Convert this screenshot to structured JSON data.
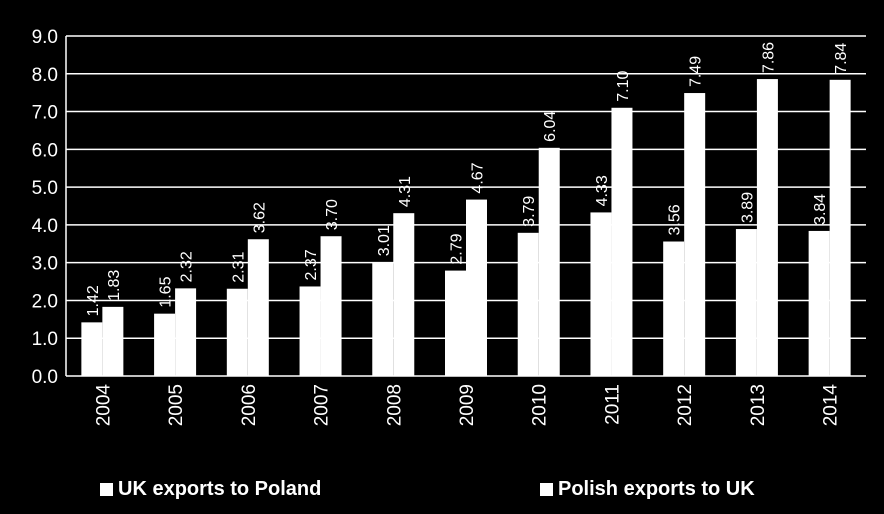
{
  "chart_data": {
    "type": "bar",
    "title": "",
    "xlabel": "",
    "ylabel": "",
    "categories": [
      "2004",
      "2005",
      "2006",
      "2007",
      "2008",
      "2009",
      "2010",
      "2011",
      "2012",
      "2013",
      "2014"
    ],
    "series": [
      {
        "name": "UK exports to Poland",
        "values": [
          1.42,
          1.65,
          2.31,
          2.37,
          3.01,
          2.79,
          3.79,
          4.33,
          3.56,
          3.89,
          3.84
        ],
        "labels": [
          "1.42",
          "1.65",
          "2.31",
          "2.37",
          "3.01",
          "2.79",
          "3.79",
          "4.33",
          "3.56",
          "3.89",
          "3.84"
        ]
      },
      {
        "name": "Polish exports to UK",
        "values": [
          1.83,
          2.32,
          3.62,
          3.7,
          4.31,
          4.67,
          6.04,
          7.1,
          7.49,
          7.86,
          7.84
        ],
        "labels": [
          "1.83",
          "2.32",
          "3.62",
          "3.70",
          "4.31",
          "4.67",
          "6.04",
          "7.10",
          "7.49",
          "7.86",
          "7.84"
        ]
      }
    ],
    "ylim": [
      0,
      9
    ],
    "yticks": [
      "0.0",
      "1.0",
      "2.0",
      "3.0",
      "4.0",
      "5.0",
      "6.0",
      "7.0",
      "8.0",
      "9.0"
    ],
    "grid": true,
    "legend_position": "bottom",
    "colors": {
      "background": "#000000",
      "bars": "#ffffff",
      "text": "#ffffff",
      "grid": "#ffffff"
    }
  },
  "legend": {
    "item1": "UK exports to Poland",
    "item2": "Polish exports to UK"
  }
}
